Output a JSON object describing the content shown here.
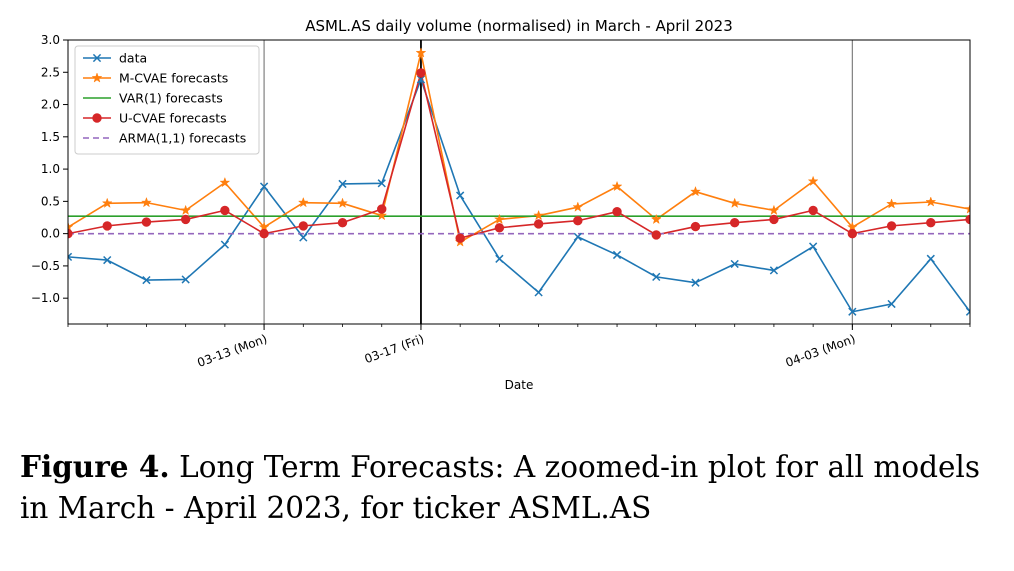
{
  "chart_data": {
    "type": "line",
    "title": "ASML.AS daily volume (normalised) in March - April 2023",
    "xlabel": "Date",
    "ylabel": "",
    "ylim": [
      -1.4,
      3.0
    ],
    "yticks": [
      -1.0,
      -0.5,
      0.0,
      0.5,
      1.0,
      1.5,
      2.0,
      2.5,
      3.0
    ],
    "ytick_labels": [
      "−1.0",
      "−0.5",
      "0.0",
      "0.5",
      "1.0",
      "1.5",
      "2.0",
      "2.5",
      "3.0"
    ],
    "x_index_range": [
      0,
      23
    ],
    "x": [
      0,
      1,
      2,
      3,
      4,
      5,
      6,
      7,
      8,
      9,
      10,
      11,
      12,
      13,
      14,
      15,
      16,
      17,
      18,
      19,
      20,
      21,
      22,
      23
    ],
    "xticks": [
      {
        "x": 5,
        "label": "03-13 (Mon)"
      },
      {
        "x": 9,
        "label": "03-17 (Fri)"
      },
      {
        "x": 20,
        "label": "04-03 (Mon)"
      }
    ],
    "minor_xticks": [
      0,
      1,
      2,
      3,
      4,
      5,
      6,
      7,
      8,
      9,
      10,
      11,
      12,
      13,
      14,
      15,
      16,
      17,
      18,
      19,
      20,
      21,
      22,
      23
    ],
    "vlines": [
      {
        "x": 5,
        "color": "#808080",
        "width": 1.2
      },
      {
        "x": 9,
        "color": "#000000",
        "width": 1.8
      },
      {
        "x": 20,
        "color": "#808080",
        "width": 1.2
      }
    ],
    "legend_position": "top-left",
    "series": [
      {
        "name": "data",
        "color": "#1f77b4",
        "marker": "x",
        "dash": "",
        "values": [
          -0.36,
          -0.41,
          -0.72,
          -0.71,
          -0.17,
          0.73,
          -0.06,
          0.77,
          0.78,
          2.39,
          0.59,
          -0.39,
          -0.91,
          -0.05,
          -0.33,
          -0.67,
          -0.76,
          -0.47,
          -0.57,
          -0.2,
          -1.21,
          -1.09,
          -0.39,
          -1.21
        ]
      },
      {
        "name": "M-CVAE forecasts",
        "color": "#ff7f0e",
        "marker": "star",
        "dash": "",
        "values": [
          0.1,
          0.47,
          0.48,
          0.36,
          0.79,
          0.1,
          0.48,
          0.47,
          0.28,
          2.8,
          -0.13,
          0.22,
          0.28,
          0.41,
          0.73,
          0.22,
          0.65,
          0.47,
          0.36,
          0.81,
          0.1,
          0.46,
          0.49,
          0.38
        ]
      },
      {
        "name": "VAR(1) forecasts",
        "color": "#2ca02c",
        "marker": "none",
        "dash": "",
        "values": [
          0.27,
          0.27,
          0.27,
          0.27,
          0.27,
          0.27,
          0.27,
          0.27,
          0.27,
          0.27,
          0.27,
          0.27,
          0.27,
          0.27,
          0.27,
          0.27,
          0.27,
          0.27,
          0.27,
          0.27,
          0.27,
          0.27,
          0.27,
          0.27
        ]
      },
      {
        "name": "U-CVAE forecasts",
        "color": "#d62728",
        "marker": "circle",
        "dash": "",
        "values": [
          0.0,
          0.12,
          0.18,
          0.22,
          0.36,
          0.0,
          0.12,
          0.17,
          0.38,
          2.49,
          -0.07,
          0.09,
          0.15,
          0.2,
          0.34,
          -0.02,
          0.11,
          0.17,
          0.22,
          0.36,
          0.0,
          0.12,
          0.17,
          0.22
        ]
      },
      {
        "name": "ARMA(1,1) forecasts",
        "color": "#9467bd",
        "marker": "none",
        "dash": "6,4",
        "values": [
          0.0,
          0.0,
          0.0,
          0.0,
          0.0,
          0.0,
          0.0,
          0.0,
          0.0,
          0.0,
          0.0,
          0.0,
          0.0,
          0.0,
          0.0,
          0.0,
          0.0,
          0.0,
          0.0,
          0.0,
          0.0,
          0.0,
          0.0,
          0.0
        ]
      }
    ]
  },
  "caption": {
    "label": "Figure 4.",
    "text": "Long Term Forecasts: A zoomed-in plot for all models in March - April 2023, for ticker ASML.AS"
  }
}
